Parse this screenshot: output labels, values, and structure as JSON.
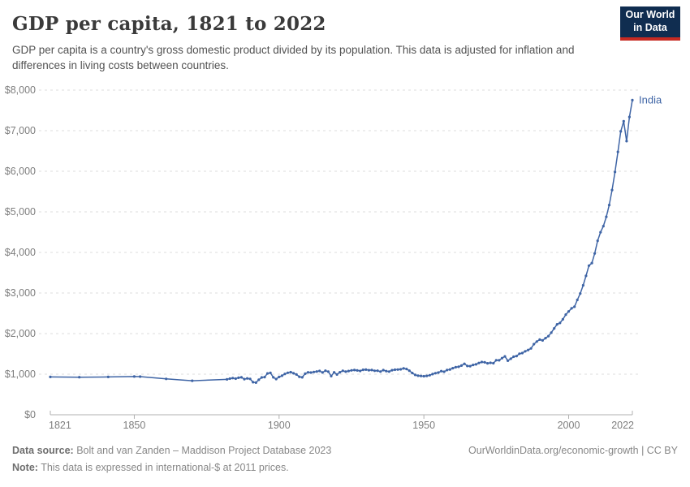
{
  "header": {
    "title": "GDP per capita, 1821 to 2022",
    "subtitle": "GDP per capita is a country's gross domestic product divided by its population. This data is adjusted for inflation and differences in living costs between countries.",
    "logo": {
      "line1": "Our World",
      "line2": "in Data",
      "bg_color": "#102d50",
      "accent_color": "#c62a22"
    }
  },
  "footer": {
    "data_source_label": "Data source:",
    "data_source_text": "Bolt and van Zanden – Maddison Project Database 2023",
    "link_text": "OurWorldinData.org/economic-growth | CC BY",
    "note_label": "Note:",
    "note_text": "This data is expressed in international-$ at 2011 prices."
  },
  "chart_data": {
    "type": "line",
    "title": "GDP per capita, 1821 to 2022",
    "xlabel": "",
    "ylabel": "",
    "xlim": [
      1821,
      2022
    ],
    "ylim": [
      0,
      8000
    ],
    "grid": "horizontal-dashed",
    "legend_position": "end-of-line-label",
    "x_ticks": [
      1821,
      1850,
      1900,
      1950,
      2000,
      2022
    ],
    "y_ticks": [
      0,
      1000,
      2000,
      3000,
      4000,
      5000,
      6000,
      7000,
      8000
    ],
    "y_tick_prefix": "$",
    "colors": {
      "grid": "#dcdcdc",
      "axis": "#b0b0b0",
      "tick_text": "#7e7e7e"
    },
    "series": [
      {
        "name": "India",
        "color": "#3e64a5",
        "points": [
          [
            1821,
            933
          ],
          [
            1831,
            926
          ],
          [
            1841,
            931
          ],
          [
            1850,
            942
          ],
          [
            1852,
            940
          ],
          [
            1861,
            885
          ],
          [
            1870,
            839
          ],
          [
            1882,
            872
          ],
          [
            1883,
            890
          ],
          [
            1884,
            905
          ],
          [
            1885,
            890
          ],
          [
            1886,
            912
          ],
          [
            1887,
            922
          ],
          [
            1888,
            878
          ],
          [
            1889,
            896
          ],
          [
            1890,
            884
          ],
          [
            1891,
            802
          ],
          [
            1892,
            792
          ],
          [
            1893,
            862
          ],
          [
            1894,
            920
          ],
          [
            1895,
            928
          ],
          [
            1896,
            1018
          ],
          [
            1897,
            1032
          ],
          [
            1898,
            922
          ],
          [
            1899,
            880
          ],
          [
            1900,
            932
          ],
          [
            1901,
            962
          ],
          [
            1902,
            1006
          ],
          [
            1903,
            1034
          ],
          [
            1904,
            1050
          ],
          [
            1905,
            1022
          ],
          [
            1906,
            992
          ],
          [
            1907,
            936
          ],
          [
            1908,
            921
          ],
          [
            1909,
            1011
          ],
          [
            1910,
            1046
          ],
          [
            1911,
            1040
          ],
          [
            1912,
            1055
          ],
          [
            1913,
            1066
          ],
          [
            1914,
            1080
          ],
          [
            1915,
            1041
          ],
          [
            1916,
            1086
          ],
          [
            1917,
            1061
          ],
          [
            1918,
            952
          ],
          [
            1919,
            1046
          ],
          [
            1920,
            992
          ],
          [
            1921,
            1048
          ],
          [
            1922,
            1085
          ],
          [
            1923,
            1062
          ],
          [
            1924,
            1078
          ],
          [
            1925,
            1094
          ],
          [
            1926,
            1102
          ],
          [
            1927,
            1092
          ],
          [
            1928,
            1080
          ],
          [
            1929,
            1108
          ],
          [
            1930,
            1112
          ],
          [
            1931,
            1098
          ],
          [
            1932,
            1102
          ],
          [
            1933,
            1084
          ],
          [
            1934,
            1086
          ],
          [
            1935,
            1064
          ],
          [
            1936,
            1100
          ],
          [
            1937,
            1076
          ],
          [
            1938,
            1064
          ],
          [
            1939,
            1098
          ],
          [
            1940,
            1110
          ],
          [
            1941,
            1114
          ],
          [
            1942,
            1120
          ],
          [
            1943,
            1143
          ],
          [
            1944,
            1128
          ],
          [
            1945,
            1086
          ],
          [
            1946,
            1028
          ],
          [
            1947,
            982
          ],
          [
            1948,
            962
          ],
          [
            1949,
            956
          ],
          [
            1950,
            950
          ],
          [
            1951,
            958
          ],
          [
            1952,
            974
          ],
          [
            1953,
            1002
          ],
          [
            1954,
            1024
          ],
          [
            1955,
            1040
          ],
          [
            1956,
            1076
          ],
          [
            1957,
            1060
          ],
          [
            1958,
            1102
          ],
          [
            1959,
            1116
          ],
          [
            1960,
            1148
          ],
          [
            1961,
            1173
          ],
          [
            1962,
            1182
          ],
          [
            1963,
            1212
          ],
          [
            1964,
            1256
          ],
          [
            1965,
            1202
          ],
          [
            1966,
            1197
          ],
          [
            1967,
            1229
          ],
          [
            1968,
            1243
          ],
          [
            1969,
            1276
          ],
          [
            1970,
            1300
          ],
          [
            1971,
            1291
          ],
          [
            1972,
            1268
          ],
          [
            1973,
            1280
          ],
          [
            1974,
            1270
          ],
          [
            1975,
            1345
          ],
          [
            1976,
            1341
          ],
          [
            1977,
            1396
          ],
          [
            1978,
            1438
          ],
          [
            1979,
            1332
          ],
          [
            1980,
            1380
          ],
          [
            1981,
            1430
          ],
          [
            1982,
            1446
          ],
          [
            1983,
            1505
          ],
          [
            1984,
            1520
          ],
          [
            1985,
            1564
          ],
          [
            1986,
            1596
          ],
          [
            1987,
            1635
          ],
          [
            1988,
            1740
          ],
          [
            1989,
            1804
          ],
          [
            1990,
            1853
          ],
          [
            1991,
            1833
          ],
          [
            1992,
            1888
          ],
          [
            1993,
            1938
          ],
          [
            1994,
            2025
          ],
          [
            1995,
            2127
          ],
          [
            1996,
            2228
          ],
          [
            1997,
            2263
          ],
          [
            1998,
            2353
          ],
          [
            1999,
            2467
          ],
          [
            2000,
            2546
          ],
          [
            2001,
            2623
          ],
          [
            2002,
            2663
          ],
          [
            2003,
            2830
          ],
          [
            2004,
            2988
          ],
          [
            2005,
            3190
          ],
          [
            2006,
            3421
          ],
          [
            2007,
            3674
          ],
          [
            2008,
            3738
          ],
          [
            2009,
            3973
          ],
          [
            2010,
            4288
          ],
          [
            2011,
            4498
          ],
          [
            2012,
            4648
          ],
          [
            2013,
            4878
          ],
          [
            2014,
            5168
          ],
          [
            2015,
            5538
          ],
          [
            2016,
            5983
          ],
          [
            2017,
            6478
          ],
          [
            2018,
            6983
          ],
          [
            2019,
            7233
          ],
          [
            2020,
            6743
          ],
          [
            2021,
            7338
          ],
          [
            2022,
            7753
          ]
        ]
      }
    ]
  }
}
